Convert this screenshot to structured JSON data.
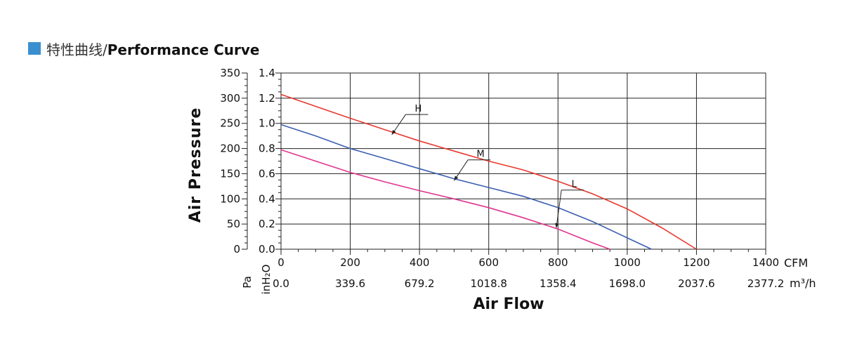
{
  "header": {
    "title_cn": "特性曲线/",
    "title_en": "Performance Curve"
  },
  "chart_data": {
    "type": "line",
    "xlabel": "Air Flow",
    "ylabel": "Air Pressure",
    "x_unit": "CFM",
    "x_unit_secondary": "m³/h",
    "y_unit_pa": "Pa",
    "y_unit_inh2o": "inH₂O",
    "xlim": [
      0,
      1400
    ],
    "ylim": [
      0,
      1.4
    ],
    "x_ticks": [
      0,
      200,
      400,
      600,
      800,
      1000,
      1200,
      1400
    ],
    "x_ticks_secondary": [
      "0.0",
      "339.6",
      "679.2",
      "1018.8",
      "1358.4",
      "1698.0",
      "2037.6",
      "2377.2"
    ],
    "y_ticks_inh2o": [
      "0.0",
      "0.2",
      "0.4",
      "0.6",
      "0.8",
      "1.0",
      "1.2",
      "1.4"
    ],
    "y_ticks_pa": [
      "0",
      "50",
      "100",
      "150",
      "200",
      "250",
      "300",
      "350"
    ],
    "grid": true,
    "series": [
      {
        "name": "H",
        "color": "#e8382e",
        "x": [
          0,
          100,
          200,
          300,
          400,
          500,
          600,
          700,
          800,
          900,
          1000,
          1100,
          1200
        ],
        "y": [
          1.23,
          1.135,
          1.04,
          0.95,
          0.86,
          0.78,
          0.7,
          0.63,
          0.54,
          0.44,
          0.32,
          0.17,
          0.0
        ]
      },
      {
        "name": "M",
        "color": "#3b5fb0",
        "x": [
          0,
          100,
          200,
          300,
          400,
          500,
          600,
          700,
          800,
          900,
          1000,
          1070
        ],
        "y": [
          0.99,
          0.9,
          0.8,
          0.72,
          0.64,
          0.56,
          0.49,
          0.42,
          0.33,
          0.22,
          0.09,
          0.0
        ]
      },
      {
        "name": "L",
        "color": "#e0348f",
        "x": [
          0,
          100,
          200,
          300,
          400,
          500,
          600,
          700,
          800,
          900,
          950
        ],
        "y": [
          0.79,
          0.7,
          0.61,
          0.535,
          0.465,
          0.4,
          0.33,
          0.25,
          0.16,
          0.05,
          0.0
        ]
      }
    ]
  }
}
